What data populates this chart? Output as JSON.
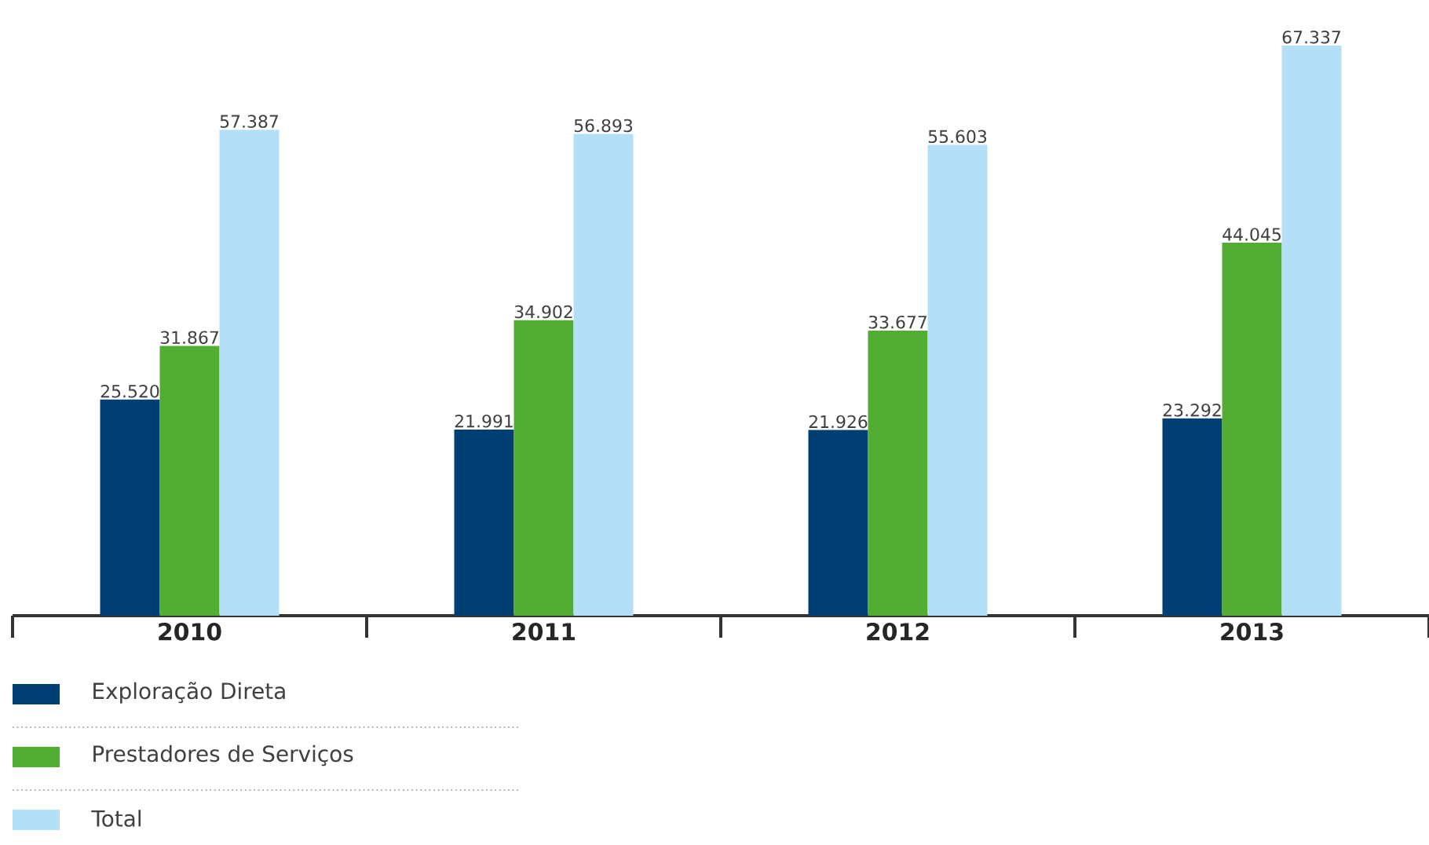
{
  "chart_data": {
    "type": "bar",
    "categories": [
      "2010",
      "2011",
      "2012",
      "2013"
    ],
    "series": [
      {
        "name": "Exploração Direta",
        "color": "#003f73",
        "values": [
          25520,
          21991,
          21926,
          23292
        ],
        "value_labels": [
          "25.520",
          "21.991",
          "21.926",
          "23.292"
        ]
      },
      {
        "name": "Prestadores de Serviços",
        "color": "#52ae32",
        "values": [
          31867,
          34902,
          33677,
          44045
        ],
        "value_labels": [
          "31.867",
          "34.902",
          "33.677",
          "44.045"
        ]
      },
      {
        "name": "Total",
        "color": "#b3e0f7",
        "values": [
          57387,
          56893,
          55603,
          67337
        ],
        "value_labels": [
          "57.387",
          "56.893",
          "55.603",
          "67.337"
        ]
      }
    ],
    "legend": "bottom left",
    "tick_labels": "x"
  }
}
